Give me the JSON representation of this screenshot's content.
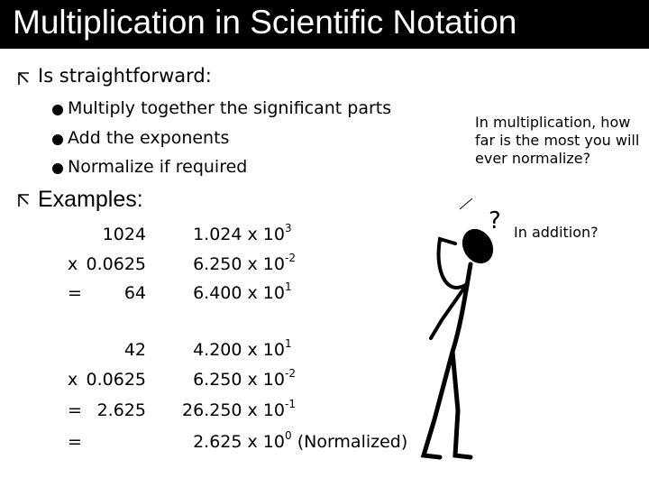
{
  "title": "Multiplication in Scientific Notation",
  "bullets": [
    {
      "text": "Is straightforward:",
      "items": [
        "Multiply together the significant parts",
        "Add the exponents",
        "Normalize if required"
      ]
    },
    {
      "text": "Examples:"
    }
  ],
  "examples": [
    [
      {
        "num": "1024",
        "base": "1.024 x 10",
        "exp": "3"
      },
      {
        "op": "x",
        "num": "0.0625",
        "base": "6.250 x 10",
        "exp": "-2"
      },
      {
        "op": "=",
        "num": "64",
        "base": "6.400 x 10",
        "exp": "1"
      }
    ],
    [
      {
        "num": "42",
        "base": "4.200 x 10",
        "exp": "1"
      },
      {
        "op": "x",
        "num": "0.0625",
        "base": "6.250 x 10",
        "exp": "-2"
      },
      {
        "op": "=",
        "num": "2.625",
        "base": "26.250 x 10",
        "exp": "-1"
      },
      {
        "op": "=",
        "base": "2.625 x 10",
        "exp": "0",
        "suffix": "(Normalized)"
      }
    ]
  ],
  "notes": [
    "In multiplication, how far is the most you will ever normalize?",
    "In addition?"
  ],
  "figure_text": "?"
}
